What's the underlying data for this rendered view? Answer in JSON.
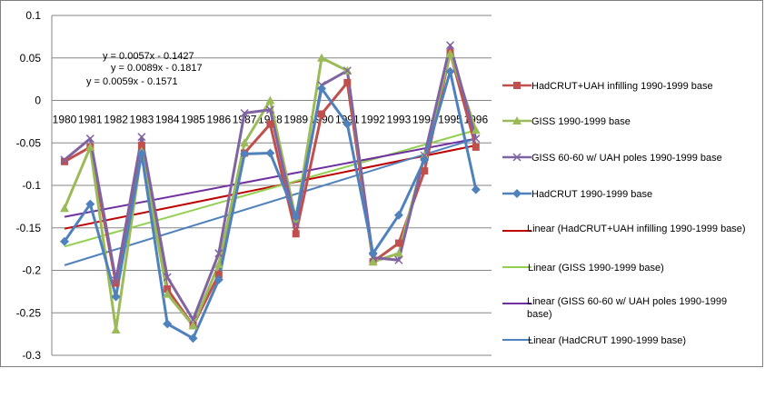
{
  "chart_data": {
    "type": "line",
    "categories": [
      "1980",
      "1981",
      "1982",
      "1983",
      "1984",
      "1985",
      "1986",
      "1987",
      "1988",
      "1989",
      "1990",
      "1991",
      "1992",
      "1993",
      "1994",
      "1995",
      "1996"
    ],
    "ylim": [
      -0.3,
      0.1
    ],
    "yticks": [
      0.1,
      0.05,
      0,
      -0.05,
      -0.1,
      -0.15,
      -0.2,
      -0.25,
      -0.3
    ],
    "ytick_labels": [
      "0.1",
      "0.05",
      "0",
      "-0.05",
      "-0.1",
      "-0.15",
      "-0.2",
      "-0.25",
      "-0.3"
    ],
    "grid": true,
    "legend_position": "right",
    "series": [
      {
        "name": "HadCRUT+UAH infilling 1990-1999 base",
        "color": "#c0504d",
        "marker": "square",
        "values": [
          -0.072,
          -0.055,
          -0.215,
          -0.053,
          -0.222,
          -0.265,
          -0.205,
          -0.062,
          -0.028,
          -0.157,
          -0.016,
          0.021,
          -0.19,
          -0.168,
          -0.083,
          0.056,
          -0.055
        ]
      },
      {
        "name": "GISS 1990-1999 base",
        "color": "#9bbb59",
        "marker": "triangle",
        "values": [
          -0.127,
          -0.055,
          -0.27,
          -0.06,
          -0.228,
          -0.265,
          -0.193,
          -0.05,
          0.0,
          -0.14,
          0.05,
          0.035,
          -0.19,
          -0.18,
          -0.065,
          0.055,
          -0.035
        ]
      },
      {
        "name": "GISS 60-60 w/ UAH poles 1990-1999 base",
        "color": "#8064a2",
        "marker": "x",
        "values": [
          -0.07,
          -0.045,
          -0.212,
          -0.043,
          -0.208,
          -0.258,
          -0.18,
          -0.015,
          -0.011,
          -0.146,
          0.018,
          0.035,
          -0.185,
          -0.188,
          -0.065,
          0.065,
          -0.045
        ]
      },
      {
        "name": "HadCRUT 1990-1999 base",
        "color": "#4f81bd",
        "marker": "diamond",
        "values": [
          -0.166,
          -0.122,
          -0.231,
          -0.063,
          -0.263,
          -0.28,
          -0.211,
          -0.063,
          -0.062,
          -0.137,
          0.014,
          -0.028,
          -0.18,
          -0.135,
          -0.07,
          0.034,
          -0.105
        ]
      }
    ],
    "trendlines": [
      {
        "name": "Linear (HadCRUT+UAH  infilling 1990-1999 base)",
        "color": "#c00000",
        "y_start": -0.151,
        "y_end": -0.053
      },
      {
        "name": "Linear (GISS 1990-1999 base)",
        "color": "#92d050",
        "y_start": -0.172,
        "y_end": -0.035
      },
      {
        "name": "Linear (GISS 60-60 w/ UAH poles 1990-1999 base)",
        "color": "#7030a0",
        "y_start": -0.137,
        "y_end": -0.045
      },
      {
        "name": "Linear (HadCRUT  1990-1999 base)",
        "color": "#4f81bd",
        "y_start": -0.194,
        "y_end": -0.045
      }
    ],
    "annotations": [
      "y = 0.0057x - 0.1427",
      "y = 0.0089x - 0.1817",
      "y = 0.0059x - 0.1571"
    ]
  }
}
